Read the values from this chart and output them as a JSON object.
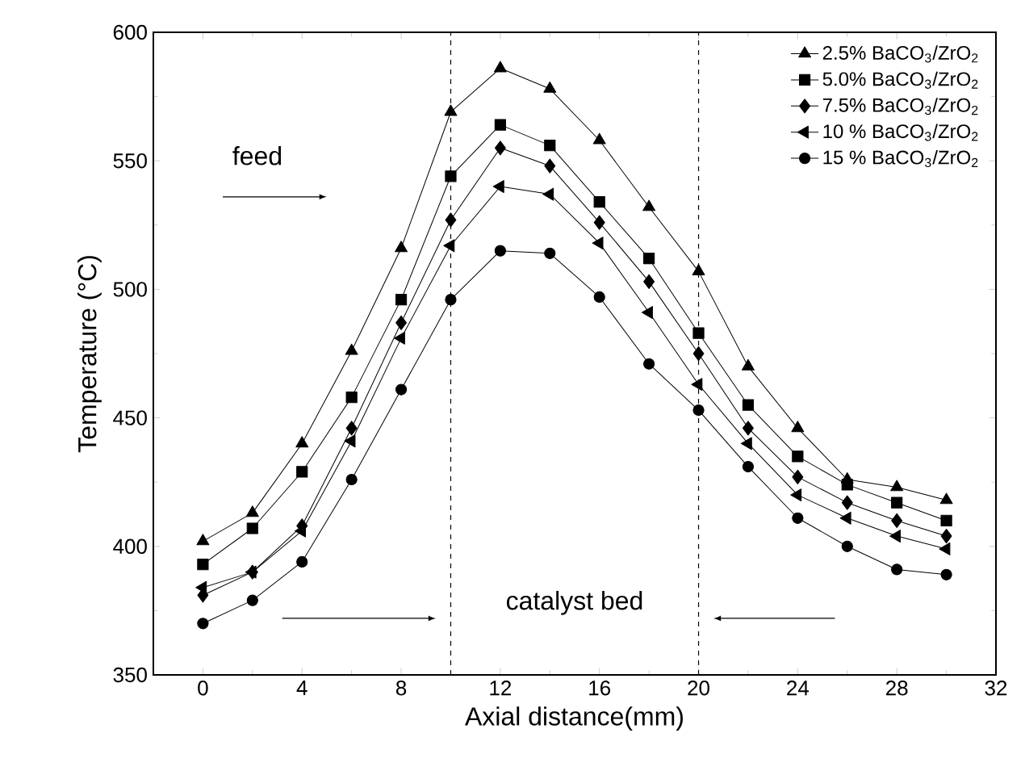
{
  "chart_data": {
    "type": "line",
    "xlabel": "Axial distance(mm)",
    "ylabel": "Temperature (°C)",
    "x": [
      0,
      2,
      4,
      6,
      8,
      10,
      12,
      14,
      16,
      18,
      20,
      22,
      24,
      26,
      28,
      30
    ],
    "xlim": [
      -2,
      32
    ],
    "ylim": [
      350,
      600
    ],
    "xticks": [
      0,
      4,
      8,
      12,
      16,
      20,
      24,
      28,
      32
    ],
    "yticks": [
      350,
      400,
      450,
      500,
      550,
      600
    ],
    "legend": "top right",
    "grid": false,
    "line_style": "solid",
    "series": [
      {
        "name": "2.5% BaCO$_{3}$/ZrO$_{2}$",
        "color": "#000000",
        "marker": "triangle",
        "values": [
          402,
          413,
          440,
          476,
          516,
          569,
          586,
          578,
          558,
          532,
          507,
          470,
          446,
          426,
          423,
          418
        ]
      },
      {
        "name": "5.0% BaCO$_{3}$/ZrO$_{2}$",
        "color": "#000000",
        "marker": "square",
        "values": [
          393,
          407,
          429,
          458,
          496,
          544,
          564,
          556,
          534,
          512,
          483,
          455,
          435,
          424,
          417,
          410
        ]
      },
      {
        "name": "7.5% BaCO$_{3}$/ZrO$_{2}$",
        "color": "#000000",
        "marker": "diamond",
        "values": [
          381,
          390,
          408,
          446,
          487,
          527,
          555,
          548,
          526,
          503,
          475,
          446,
          427,
          417,
          410,
          404
        ]
      },
      {
        "name": "10 % BaCO$_{3}$/ZrO$_{2}$",
        "color": "#000000",
        "marker": "triangle-left",
        "values": [
          384,
          390,
          406,
          441,
          481,
          517,
          540,
          537,
          518,
          491,
          463,
          440,
          420,
          411,
          404,
          399
        ]
      },
      {
        "name": "15 % BaCO$_{3}$/ZrO$_{2}$",
        "color": "#000000",
        "marker": "circle",
        "values": [
          370,
          379,
          394,
          426,
          461,
          496,
          515,
          514,
          497,
          471,
          453,
          431,
          411,
          400,
          391,
          389
        ]
      }
    ],
    "ref_lines": [
      {
        "axis": "x",
        "value": 10,
        "line_style": "dashed"
      },
      {
        "axis": "x",
        "value": 20,
        "line_style": "dashed"
      }
    ],
    "annotations": [
      "feed",
      "catalyst bed"
    ]
  }
}
